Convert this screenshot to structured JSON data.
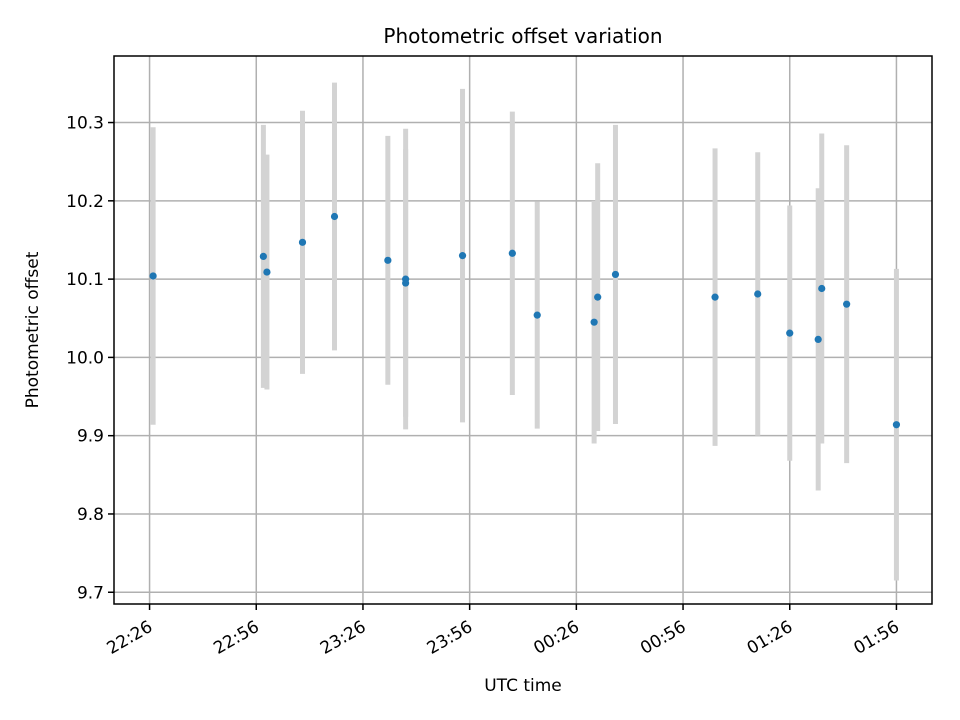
{
  "chart_data": {
    "type": "scatter",
    "title": "Photometric offset variation",
    "xlabel": "UTC time",
    "ylabel": "Photometric offset",
    "x_ticks": [
      "22:26",
      "22:56",
      "23:26",
      "23:56",
      "00:26",
      "00:56",
      "01:26",
      "01:56"
    ],
    "y_ticks": [
      "9.7",
      "9.8",
      "9.9",
      "10.0",
      "10.1",
      "10.2",
      "10.3"
    ],
    "ylim": [
      9.685,
      10.385
    ],
    "xlim": [
      "22:16",
      "02:06"
    ],
    "grid": true,
    "marker_color": "#1f77b4",
    "errorbar_color": "#d3d3d3",
    "points": [
      {
        "x": "22:27",
        "y": 10.104,
        "err": 0.19
      },
      {
        "x": "22:58",
        "y": 10.129,
        "err": 0.168
      },
      {
        "x": "22:59",
        "y": 10.109,
        "err": 0.15
      },
      {
        "x": "23:09",
        "y": 10.147,
        "err": 0.168
      },
      {
        "x": "23:18",
        "y": 10.18,
        "err": 0.171
      },
      {
        "x": "23:33",
        "y": 10.124,
        "err": 0.159
      },
      {
        "x": "23:38",
        "y": 10.095,
        "err": 0.171
      },
      {
        "x": "23:38",
        "y": 10.1,
        "err": 0.192
      },
      {
        "x": "23:54",
        "y": 10.13,
        "err": 0.213
      },
      {
        "x": "24:08",
        "y": 10.133,
        "err": 0.181
      },
      {
        "x": "24:15",
        "y": 10.054,
        "err": 0.145
      },
      {
        "x": "24:31",
        "y": 10.045,
        "err": 0.155
      },
      {
        "x": "24:32",
        "y": 10.077,
        "err": 0.171
      },
      {
        "x": "24:37",
        "y": 10.106,
        "err": 0.191
      },
      {
        "x": "25:05",
        "y": 10.077,
        "err": 0.19
      },
      {
        "x": "25:17",
        "y": 10.081,
        "err": 0.181
      },
      {
        "x": "25:26",
        "y": 10.031,
        "err": 0.163
      },
      {
        "x": "25:34",
        "y": 10.023,
        "err": 0.193
      },
      {
        "x": "25:35",
        "y": 10.088,
        "err": 0.198
      },
      {
        "x": "25:42",
        "y": 10.068,
        "err": 0.203
      },
      {
        "x": "25:56",
        "y": 9.914,
        "err": 0.199
      }
    ]
  }
}
